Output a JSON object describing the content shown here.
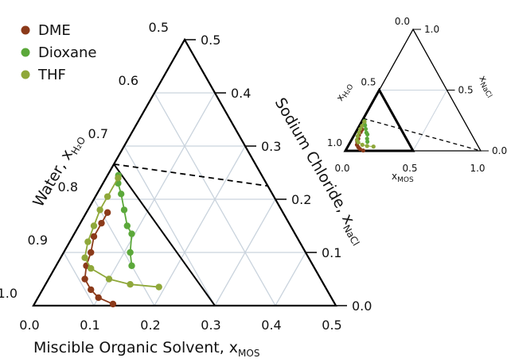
{
  "chart_data": [
    {
      "type": "ternary",
      "axes": {
        "bottom": {
          "label": "Miscible Organic Solvent, x",
          "subscript": "MOS",
          "ticks": [
            "0.0",
            "0.1",
            "0.2",
            "0.3",
            "0.4",
            "0.5"
          ]
        },
        "right": {
          "label": "Sodium Chloride, x",
          "subscript": "NaCl",
          "ticks": [
            "0.0",
            "0.1",
            "0.2",
            "0.3",
            "0.4",
            "0.5"
          ]
        },
        "left": {
          "label": "Water, x",
          "subscript": "H₂O",
          "ticks": [
            "0.5",
            "0.6",
            "0.7",
            "0.8",
            "0.9",
            "1.0"
          ]
        }
      },
      "region": {
        "water_min": 0.5,
        "mos_max": 0.5,
        "nacl_max": 0.5
      },
      "grid": true,
      "legend_position": "top-left",
      "tie_line": {
        "from": {
          "mos": 0.0,
          "nacl": 0.266
        },
        "to": {
          "mos": 0.0,
          "nacl": 0.5
        },
        "style": "dashed"
      },
      "boundary_line": {
        "from": {
          "mos": 0.0,
          "nacl": 0.266
        },
        "to": {
          "mos": 0.3,
          "nacl": 0.0
        }
      },
      "series": [
        {
          "name": "DME",
          "color": "#8B3A1A",
          "points": [
            {
              "mos": 0.035,
              "nacl": 0.175
            },
            {
              "mos": 0.035,
              "nacl": 0.155
            },
            {
              "mos": 0.035,
              "nacl": 0.13
            },
            {
              "mos": 0.045,
              "nacl": 0.1
            },
            {
              "mos": 0.05,
              "nacl": 0.075
            },
            {
              "mos": 0.06,
              "nacl": 0.05
            },
            {
              "mos": 0.08,
              "nacl": 0.03
            },
            {
              "mos": 0.1,
              "nacl": 0.015
            },
            {
              "mos": 0.13,
              "nacl": 0.003
            }
          ]
        },
        {
          "name": "Dioxane",
          "color": "#5BA83A",
          "points": [
            {
              "mos": 0.018,
              "nacl": 0.245
            },
            {
              "mos": 0.025,
              "nacl": 0.23
            },
            {
              "mos": 0.04,
              "nacl": 0.21
            },
            {
              "mos": 0.06,
              "nacl": 0.18
            },
            {
              "mos": 0.08,
              "nacl": 0.15
            },
            {
              "mos": 0.095,
              "nacl": 0.135
            },
            {
              "mos": 0.11,
              "nacl": 0.1
            },
            {
              "mos": 0.125,
              "nacl": 0.075
            }
          ]
        },
        {
          "name": "THF",
          "color": "#8FA83A",
          "points": [
            {
              "mos": 0.02,
              "nacl": 0.24
            },
            {
              "mos": 0.02,
              "nacl": 0.205
            },
            {
              "mos": 0.02,
              "nacl": 0.18
            },
            {
              "mos": 0.025,
              "nacl": 0.15
            },
            {
              "mos": 0.03,
              "nacl": 0.12
            },
            {
              "mos": 0.04,
              "nacl": 0.09
            },
            {
              "mos": 0.06,
              "nacl": 0.07
            },
            {
              "mos": 0.1,
              "nacl": 0.05
            },
            {
              "mos": 0.14,
              "nacl": 0.04
            },
            {
              "mos": 0.19,
              "nacl": 0.035
            }
          ]
        }
      ]
    },
    {
      "type": "ternary",
      "role": "inset",
      "axes": {
        "bottom": {
          "label": "x",
          "subscript": "MOS",
          "ticks": [
            "0.0",
            "0.5",
            "1.0"
          ]
        },
        "right": {
          "label": "x",
          "subscript": "NaCl",
          "ticks": [
            "0.0",
            "0.5",
            "1.0"
          ]
        },
        "left": {
          "label": "x",
          "subscript": "H₂O",
          "ticks": [
            "0.0",
            "0.5",
            "1.0"
          ]
        }
      },
      "region": {
        "water_min": 0.0,
        "mos_max": 1.0,
        "nacl_max": 1.0
      },
      "grid": true,
      "highlight_triangle": {
        "water_min": 0.5
      }
    }
  ]
}
